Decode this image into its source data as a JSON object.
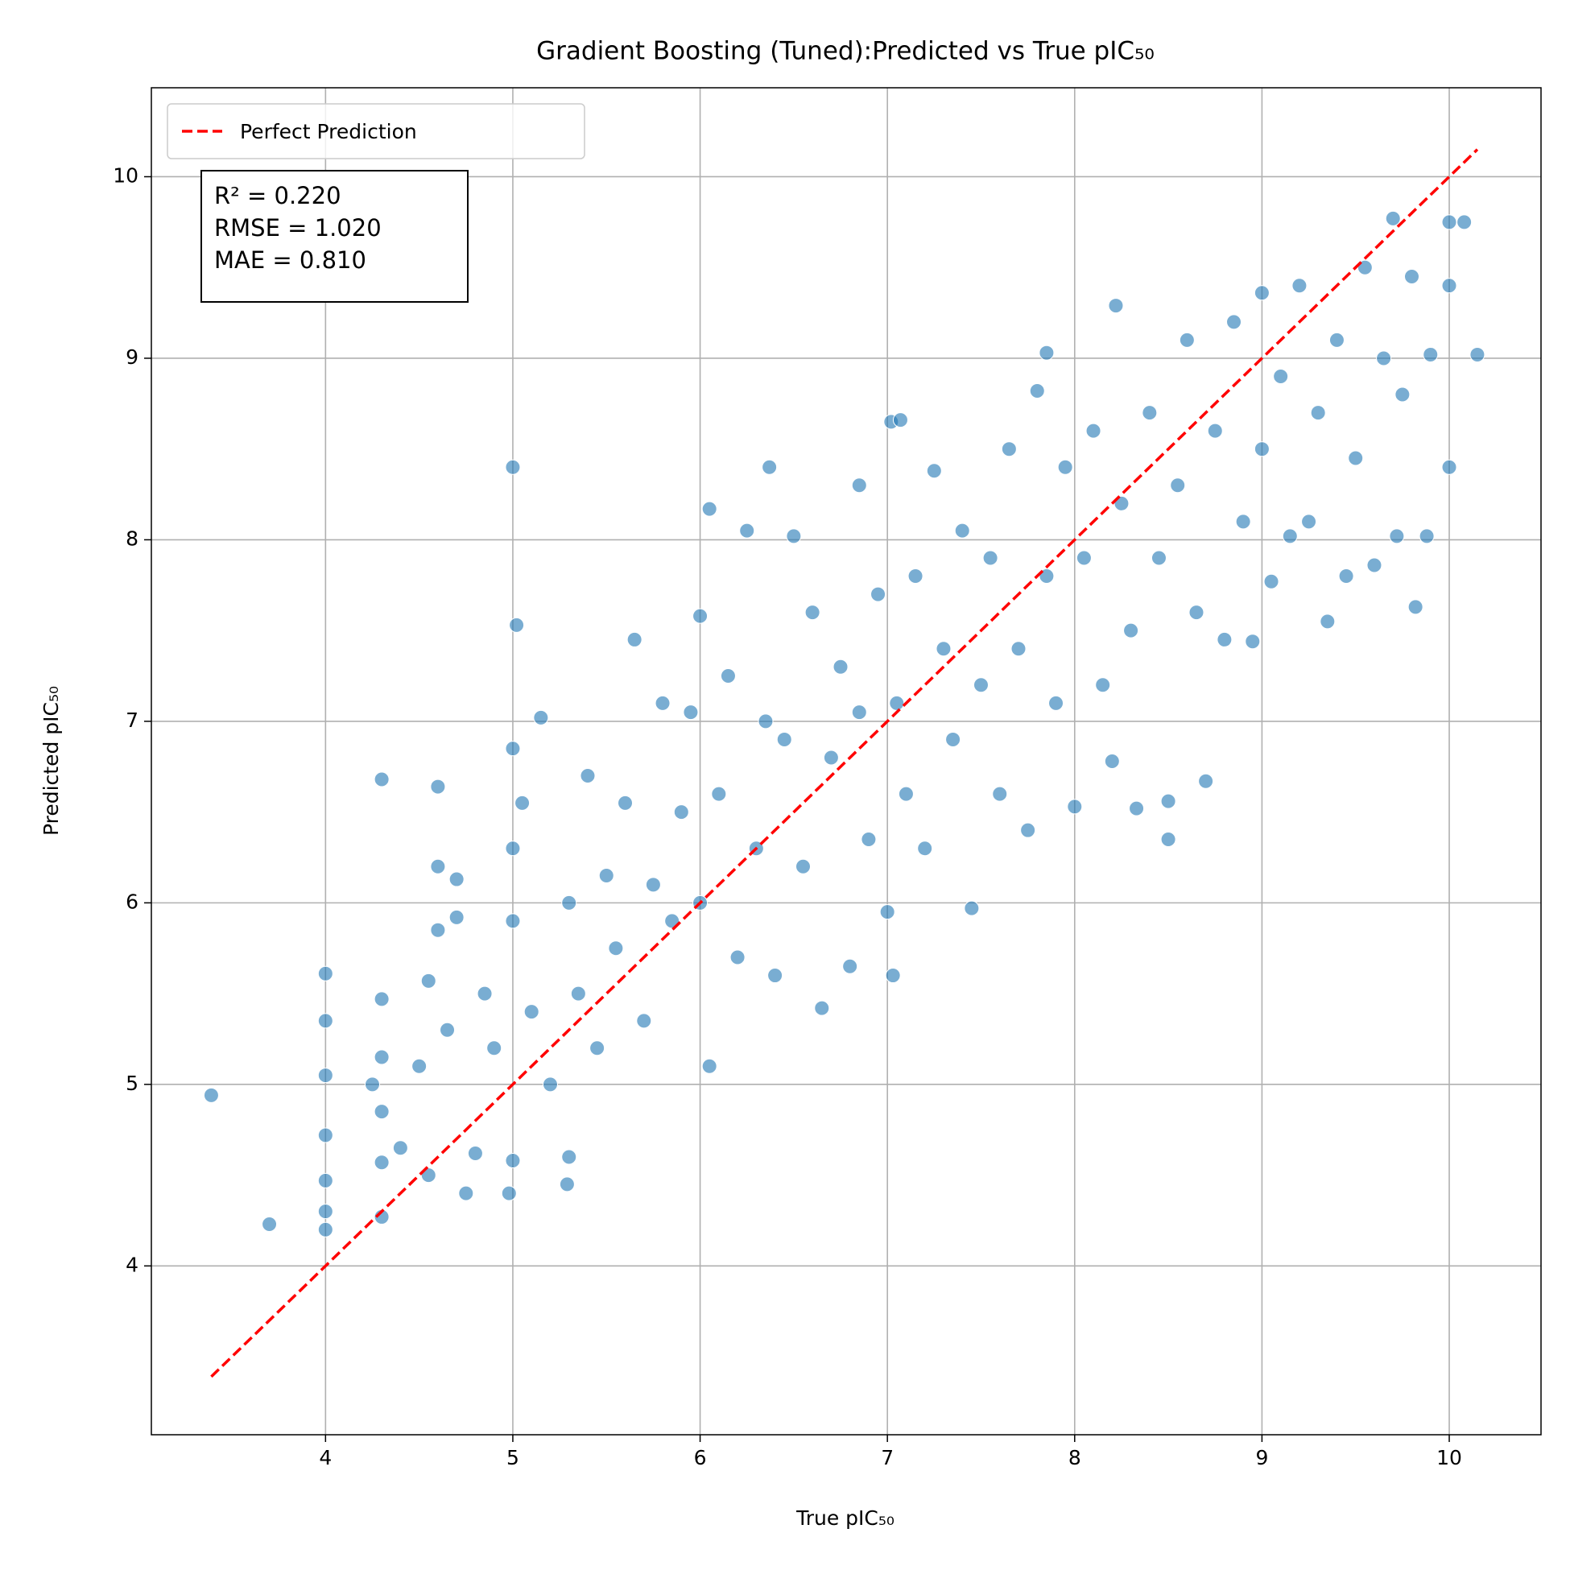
{
  "chart_data": {
    "type": "scatter",
    "title": "Gradient Boosting (Tuned):Predicted vs True pIC₅₀",
    "x_label": "True pIC₅₀",
    "y_label": "Predicted pIC₅₀",
    "xlim": [
      3.07,
      10.49
    ],
    "ylim": [
      3.07,
      10.49
    ],
    "xticks": [
      4,
      5,
      6,
      7,
      8,
      9,
      10
    ],
    "yticks": [
      4,
      5,
      6,
      7,
      8,
      9,
      10
    ],
    "grid": true,
    "legend": "upper left",
    "annotation": [
      "R² = 0.220",
      "RMSE = 1.020",
      "MAE = 0.810"
    ],
    "points": {
      "color": "#1f77b4",
      "x": [
        3.39,
        3.7,
        4,
        4,
        4,
        4,
        4,
        4,
        4,
        4.3,
        4.3,
        4.3,
        4.3,
        4.3,
        4.3,
        4.25,
        4.4,
        4.6,
        4.6,
        4.7,
        4.6,
        4.7,
        4.55,
        4.5,
        4.55,
        4.65,
        4.75,
        4.8,
        4.85,
        4.9,
        4.98,
        5,
        5,
        5.02,
        5,
        5,
        5,
        5.05,
        5.1,
        5.15,
        5.2,
        5.29,
        5.3,
        5.3,
        5.35,
        5.4,
        5.45,
        5.5,
        5.55,
        5.6,
        5.65,
        5.7,
        5.75,
        5.8,
        5.85,
        5.9,
        5.95,
        6,
        6.05,
        6,
        6.05,
        6.1,
        6.15,
        6.2,
        6.25,
        6.3,
        6.35,
        6.37,
        6.4,
        6.45,
        6.5,
        6.55,
        6.6,
        6.65,
        6.7,
        6.75,
        6.8,
        6.85,
        6.85,
        6.9,
        6.95,
        7,
        7.03,
        7.02,
        7.07,
        7.05,
        7.1,
        7.15,
        7.2,
        7.25,
        7.3,
        7.35,
        7.4,
        7.45,
        7.5,
        7.55,
        7.6,
        7.65,
        7.7,
        7.75,
        7.8,
        7.85,
        7.85,
        7.9,
        7.95,
        8,
        8.05,
        8.1,
        8.15,
        8.2,
        8.22,
        8.25,
        8.3,
        8.33,
        8.4,
        8.45,
        8.5,
        8.5,
        8.55,
        8.6,
        8.65,
        8.7,
        8.75,
        8.8,
        8.85,
        8.9,
        8.95,
        9,
        9,
        9.05,
        9.1,
        9.15,
        9.2,
        9.25,
        9.3,
        9.35,
        9.4,
        9.45,
        9.5,
        9.55,
        9.6,
        9.65,
        9.7,
        9.72,
        9.75,
        9.8,
        9.82,
        9.9,
        9.88,
        10,
        10,
        10,
        10.08,
        10.15
      ],
      "y": [
        4.94,
        4.23,
        5.61,
        5.35,
        5.05,
        4.72,
        4.47,
        4.3,
        4.2,
        6.68,
        5.47,
        5.15,
        4.85,
        4.57,
        4.27,
        5,
        4.65,
        6.64,
        6.2,
        6.13,
        5.85,
        5.92,
        5.57,
        5.1,
        4.5,
        5.3,
        4.4,
        4.62,
        5.5,
        5.2,
        4.4,
        4.58,
        8.4,
        7.53,
        6.85,
        6.3,
        5.9,
        6.55,
        5.4,
        7.02,
        5,
        4.45,
        4.6,
        6,
        5.5,
        6.7,
        5.2,
        6.15,
        5.75,
        6.55,
        7.45,
        5.35,
        6.1,
        7.1,
        5.9,
        6.5,
        7.05,
        6,
        8.17,
        7.58,
        5.1,
        6.6,
        7.25,
        5.7,
        8.05,
        6.3,
        7,
        8.4,
        5.6,
        6.9,
        8.02,
        6.2,
        7.6,
        5.42,
        6.8,
        7.3,
        5.65,
        8.3,
        7.05,
        6.35,
        7.7,
        5.95,
        5.6,
        8.65,
        8.66,
        7.1,
        6.6,
        7.8,
        6.3,
        8.38,
        7.4,
        6.9,
        8.05,
        5.97,
        7.2,
        7.9,
        6.6,
        8.5,
        7.4,
        6.4,
        8.82,
        9.03,
        7.8,
        7.1,
        8.4,
        6.53,
        7.9,
        8.6,
        7.2,
        6.78,
        9.29,
        8.2,
        7.5,
        6.52,
        8.7,
        7.9,
        6.35,
        6.56,
        8.3,
        9.1,
        7.6,
        6.67,
        8.6,
        7.45,
        9.2,
        8.1,
        7.44,
        9.36,
        8.5,
        7.77,
        8.9,
        8.02,
        9.4,
        8.1,
        8.7,
        7.55,
        9.1,
        7.8,
        8.45,
        9.5,
        7.86,
        9,
        9.77,
        8.02,
        8.8,
        9.45,
        7.63,
        9.02,
        8.02,
        9.75,
        9.4,
        8.4,
        9.75,
        9.02
      ]
    },
    "series": [
      {
        "name": "Perfect Prediction",
        "color": "#ff0000",
        "x": [
          3.39,
          10.15
        ],
        "values": [
          3.39,
          10.15
        ]
      }
    ]
  }
}
